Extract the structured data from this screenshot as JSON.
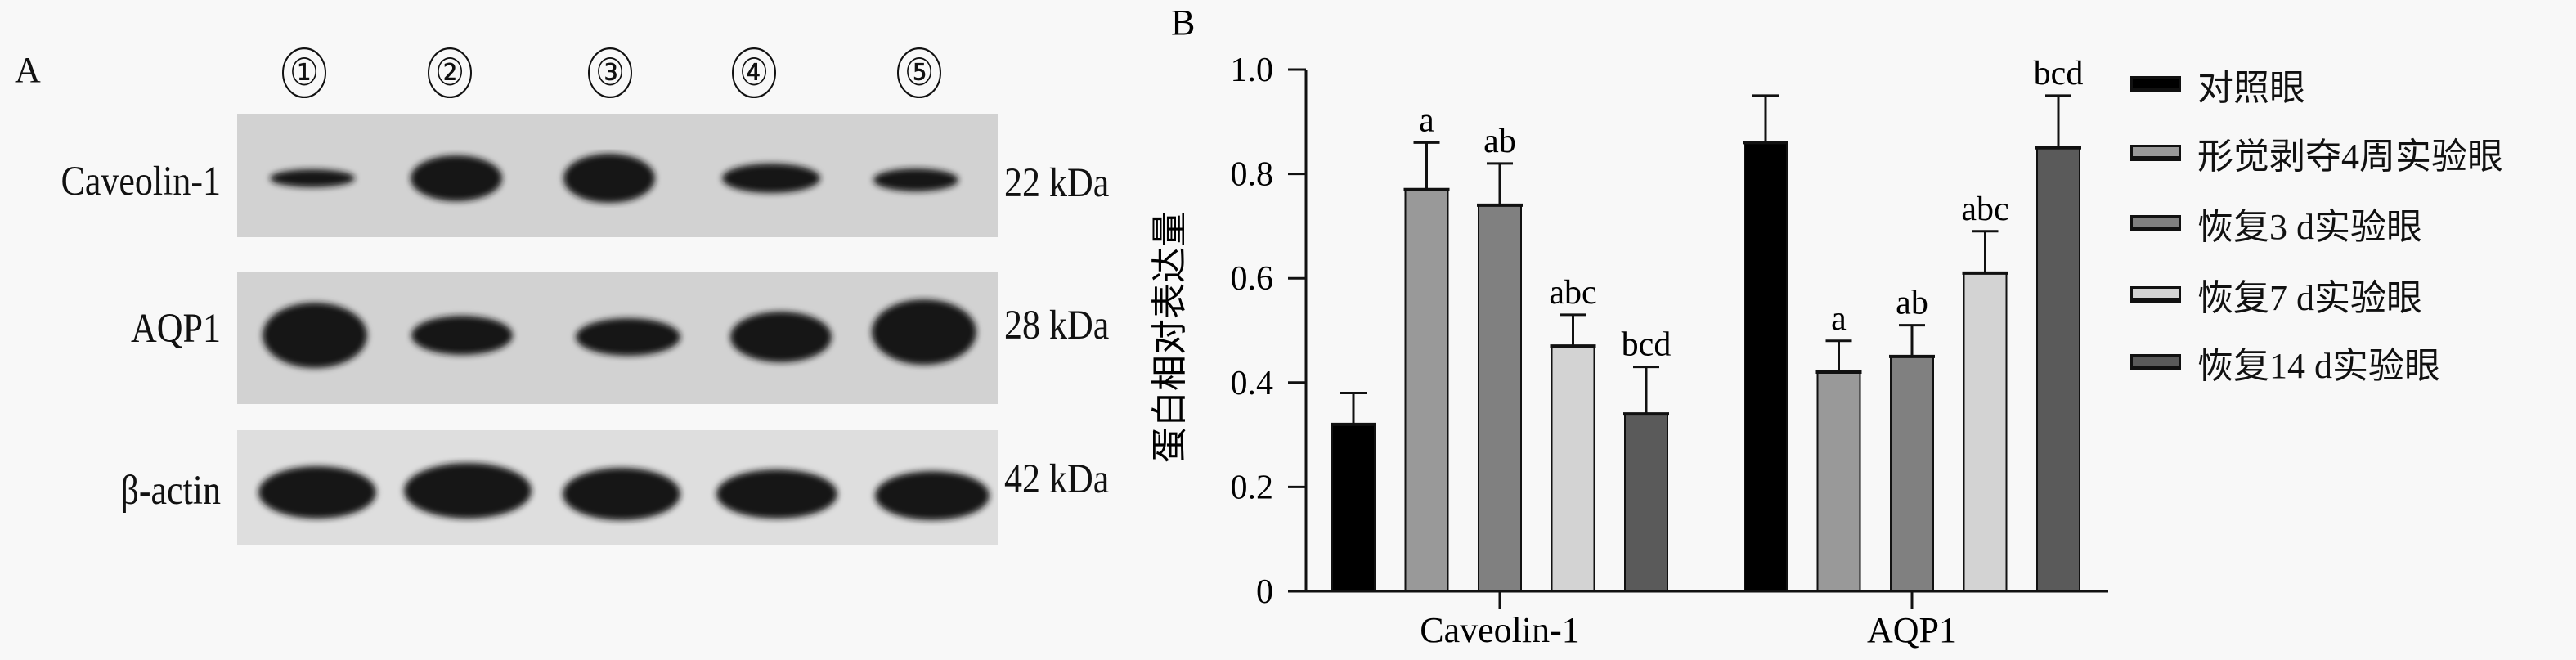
{
  "panel_a": {
    "label": "A",
    "lanes": [
      "①",
      "②",
      "③",
      "④",
      "⑤"
    ],
    "rows": [
      {
        "name": "Caveolin-1",
        "kda": "22 kDa"
      },
      {
        "name": "AQP1",
        "kda": "28 kDa"
      },
      {
        "name": "β-actin",
        "kda": "42 kDa"
      }
    ]
  },
  "chart_data": {
    "type": "bar",
    "panel_label": "B",
    "categories": [
      "Caveolin-1",
      "AQP1"
    ],
    "ylabel": "蛋白相对表达量",
    "xlabel": "",
    "ylim": [
      0,
      1.0
    ],
    "yticks": [
      "0",
      "0.2",
      "0.4",
      "0.6",
      "0.8",
      "1.0"
    ],
    "legend_position": "right",
    "series": [
      {
        "name": "对照眼",
        "color": "#000000",
        "values": [
          0.32,
          0.86
        ],
        "errors": [
          0.06,
          0.09
        ],
        "labels": [
          "",
          ""
        ]
      },
      {
        "name": "形觉剥夺4周实验眼",
        "color": "#999999",
        "values": [
          0.77,
          0.42
        ],
        "errors": [
          0.09,
          0.06
        ],
        "labels": [
          "a",
          "a"
        ]
      },
      {
        "name": "恢复3 d实验眼",
        "color": "#808080",
        "values": [
          0.74,
          0.45
        ],
        "errors": [
          0.08,
          0.06
        ],
        "labels": [
          "ab",
          "ab"
        ]
      },
      {
        "name": "恢复7 d实验眼",
        "color": "#d3d3d3",
        "values": [
          0.47,
          0.61
        ],
        "errors": [
          0.06,
          0.08
        ],
        "labels": [
          "abc",
          "abc"
        ]
      },
      {
        "name": "恢复14 d实验眼",
        "color": "#5a5a5a",
        "values": [
          0.34,
          0.85
        ],
        "errors": [
          0.09,
          0.1
        ],
        "labels": [
          "bcd",
          "bcd"
        ]
      }
    ]
  }
}
